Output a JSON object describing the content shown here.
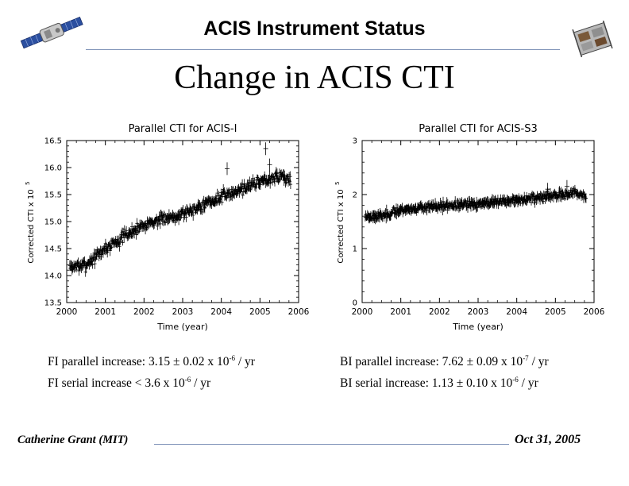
{
  "header": {
    "title": "ACIS Instrument Status",
    "left_logo_icon": "satellite-icon",
    "right_logo_icon": "acis-instrument-icon"
  },
  "slide": {
    "title": "Change in ACIS CTI"
  },
  "chart_data": [
    {
      "type": "scatter",
      "title": "Parallel CTI for ACIS-I",
      "xlabel": "Time (year)",
      "ylabel": "Corrected CTI x 10",
      "ylabel_exponent": "5",
      "xlim": [
        2000,
        2006
      ],
      "ylim": [
        13.5,
        16.5
      ],
      "xticks": [
        2000,
        2001,
        2002,
        2003,
        2004,
        2005,
        2006
      ],
      "yticks": [
        "13.5",
        "14.0",
        "14.5",
        "15.0",
        "15.5",
        "16.0",
        "16.5"
      ],
      "trend": {
        "x": [
          2000.0,
          2000.5,
          2001.0,
          2002.0,
          2003.0,
          2004.0,
          2005.0,
          2005.5,
          2005.8
        ],
        "y": [
          14.15,
          14.2,
          14.5,
          14.95,
          15.15,
          15.45,
          15.75,
          15.85,
          15.75
        ]
      },
      "scatter_sd": 0.05,
      "outliers": {
        "x": [
          2003.4,
          2004.15,
          2005.15,
          2005.25
        ],
        "y": [
          15.3,
          15.98,
          16.35,
          16.05
        ]
      }
    },
    {
      "type": "scatter",
      "title": "Parallel CTI for ACIS-S3",
      "xlabel": "Time (year)",
      "ylabel": "Corrected CTI x 10",
      "ylabel_exponent": "5",
      "xlim": [
        2000,
        2006
      ],
      "ylim": [
        0,
        3
      ],
      "xticks": [
        2000,
        2001,
        2002,
        2003,
        2004,
        2005,
        2006
      ],
      "yticks": [
        "0",
        "1",
        "2",
        "3"
      ],
      "trend": {
        "x": [
          2000.0,
          2000.5,
          2001.0,
          2002.0,
          2003.0,
          2004.0,
          2005.0,
          2005.5,
          2005.8
        ],
        "y": [
          1.6,
          1.6,
          1.72,
          1.78,
          1.83,
          1.9,
          1.98,
          2.02,
          1.97
        ]
      },
      "scatter_sd": 0.035,
      "outliers": {
        "x": [
          2004.8,
          2005.3
        ],
        "y": [
          2.1,
          2.15
        ]
      }
    }
  ],
  "stats": {
    "fi_parallel": {
      "prefix": "FI parallel increase: 3.15 ± 0.02 x 10",
      "exp": "-6",
      "suffix": " / yr"
    },
    "fi_serial": {
      "prefix": "FI serial increase < 3.6 x 10",
      "exp": "-6",
      "suffix": " / yr"
    },
    "bi_parallel": {
      "prefix": "BI parallel increase: 7.62 ± 0.09 x 10",
      "exp": "-7",
      "suffix": " / yr"
    },
    "bi_serial": {
      "prefix": "BI serial increase: 1.13 ± 0.10 x 10",
      "exp": "-6",
      "suffix": " / yr"
    }
  },
  "footer": {
    "author": "Catherine Grant (MIT)",
    "date": "Oct 31, 2005"
  },
  "colors": {
    "rule": "#7f93b8",
    "plot_ink": "#000000"
  }
}
